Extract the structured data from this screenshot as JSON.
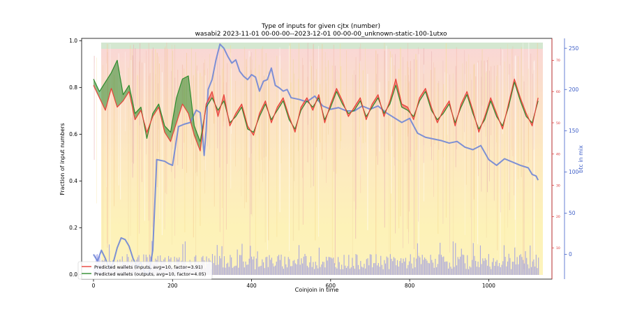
{
  "chart_data": {
    "type": "line",
    "title": "Type of inputs for given cjtx (number)",
    "subtitle": "wasabi2 2023-11-01 00-00-00--2023-12-01 00-00-00_unknown-static-100-1utxo",
    "xlabel": "Coinjoin in time",
    "ylabel": "Fraction of input numbers",
    "y2label": "",
    "y3label": "btc in mix",
    "xlim": [
      -30,
      1160
    ],
    "ylim": [
      -0.02,
      1.01
    ],
    "y2lim": [
      0,
      77
    ],
    "y3lim": [
      -30,
      262
    ],
    "xticks": [
      0,
      200,
      400,
      600,
      800,
      1000
    ],
    "yticks": [
      0.0,
      0.2,
      0.4,
      0.6,
      0.8,
      1.0
    ],
    "y2ticks": [
      10,
      20,
      30,
      40,
      50,
      60,
      70
    ],
    "y3ticks": [
      0,
      50,
      100,
      150,
      200,
      250
    ],
    "grid": false,
    "legend_position": "lower-left",
    "colors": {
      "wallets_inputs": "#e8413a",
      "wallets_outputs": "#2e8b2e",
      "btc_in_mix": "#6f86d6",
      "fill_top": "#f9d3d3",
      "fill_mid": "#fbe3b8",
      "fill_low": "#fdf3b5",
      "fill_bottom": "#8f8fe8",
      "fill_green_top": "#cfe9cf",
      "axis_right_red": "#d62728",
      "axis_right_blue": "#4060c8"
    },
    "series": [
      {
        "name": "Predicted wallets (inputs, avg=10, factor=3.91)",
        "axis": "y2",
        "x": [
          0,
          15,
          30,
          45,
          60,
          75,
          90,
          105,
          120,
          135,
          150,
          165,
          180,
          195,
          210,
          225,
          240,
          255,
          270,
          285,
          300,
          315,
          330,
          345,
          360,
          375,
          390,
          405,
          420,
          435,
          450,
          465,
          480,
          495,
          510,
          525,
          540,
          555,
          570,
          585,
          600,
          615,
          630,
          645,
          660,
          675,
          690,
          705,
          720,
          735,
          750,
          765,
          780,
          795,
          810,
          825,
          840,
          855,
          870,
          885,
          900,
          915,
          930,
          945,
          960,
          975,
          990,
          1005,
          1020,
          1035,
          1050,
          1065,
          1080,
          1095,
          1110,
          1125
        ],
        "values": [
          62,
          58,
          54,
          61,
          55,
          57,
          60,
          51,
          54,
          47,
          52,
          55,
          47,
          44,
          50,
          56,
          53,
          46,
          41,
          56,
          60,
          52,
          59,
          49,
          53,
          56,
          49,
          46,
          53,
          57,
          50,
          55,
          58,
          52,
          47,
          55,
          58,
          54,
          59,
          50,
          56,
          61,
          57,
          52,
          55,
          58,
          51,
          56,
          59,
          52,
          57,
          64,
          56,
          55,
          51,
          58,
          61,
          55,
          50,
          54,
          57,
          49,
          56,
          60,
          54,
          47,
          52,
          58,
          53,
          48,
          56,
          64,
          58,
          53,
          49,
          58
        ]
      },
      {
        "name": "Predicted wallets (outputs, avg=10, factor=4.05)",
        "axis": "y2",
        "x": [
          0,
          15,
          30,
          45,
          60,
          75,
          90,
          105,
          120,
          135,
          150,
          165,
          180,
          195,
          210,
          225,
          240,
          255,
          270,
          285,
          300,
          315,
          330,
          345,
          360,
          375,
          390,
          405,
          420,
          435,
          450,
          465,
          480,
          495,
          510,
          525,
          540,
          555,
          570,
          585,
          600,
          615,
          630,
          645,
          660,
          675,
          690,
          705,
          720,
          735,
          750,
          765,
          780,
          795,
          810,
          825,
          840,
          855,
          870,
          885,
          900,
          915,
          930,
          945,
          960,
          975,
          990,
          1005,
          1020,
          1035,
          1050,
          1065,
          1080,
          1095,
          1110,
          1125
        ],
        "values": [
          64,
          60,
          63,
          66,
          70,
          59,
          62,
          53,
          55,
          45,
          53,
          56,
          49,
          47,
          58,
          64,
          65,
          49,
          44,
          55,
          58,
          54,
          57,
          50,
          52,
          55,
          48,
          47,
          52,
          56,
          51,
          54,
          57,
          51,
          48,
          54,
          57,
          55,
          58,
          51,
          55,
          60,
          56,
          53,
          54,
          57,
          52,
          55,
          58,
          53,
          56,
          62,
          55,
          54,
          52,
          57,
          60,
          54,
          51,
          53,
          56,
          50,
          55,
          59,
          53,
          48,
          51,
          57,
          52,
          49,
          55,
          63,
          57,
          52,
          50,
          57
        ]
      },
      {
        "name": "btc in mix",
        "axis": "y3",
        "x": [
          0,
          10,
          20,
          30,
          40,
          50,
          60,
          70,
          80,
          90,
          100,
          110,
          120,
          130,
          140,
          150,
          160,
          170,
          180,
          190,
          200,
          215,
          230,
          245,
          260,
          270,
          275,
          280,
          285,
          290,
          300,
          310,
          320,
          330,
          340,
          350,
          360,
          370,
          380,
          390,
          400,
          410,
          420,
          430,
          440,
          450,
          460,
          470,
          480,
          490,
          500,
          520,
          540,
          560,
          580,
          600,
          620,
          640,
          660,
          680,
          700,
          720,
          740,
          760,
          780,
          800,
          820,
          840,
          860,
          880,
          900,
          920,
          940,
          960,
          980,
          1000,
          1020,
          1040,
          1060,
          1080,
          1100,
          1110,
          1120,
          1125
        ],
        "values": [
          0,
          -8,
          5,
          -5,
          -18,
          -10,
          8,
          20,
          18,
          10,
          -5,
          -15,
          -10,
          -22,
          -25,
          5,
          115,
          114,
          113,
          110,
          108,
          155,
          158,
          160,
          175,
          172,
          150,
          120,
          150,
          200,
          212,
          236,
          255,
          250,
          240,
          232,
          236,
          222,
          216,
          212,
          218,
          215,
          198,
          210,
          212,
          226,
          205,
          202,
          198,
          200,
          190,
          188,
          185,
          192,
          180,
          176,
          178,
          174,
          174,
          180,
          176,
          180,
          172,
          166,
          160,
          165,
          147,
          142,
          140,
          138,
          135,
          137,
          130,
          127,
          132,
          115,
          108,
          116,
          112,
          108,
          105,
          97,
          95,
          90
        ]
      }
    ]
  }
}
